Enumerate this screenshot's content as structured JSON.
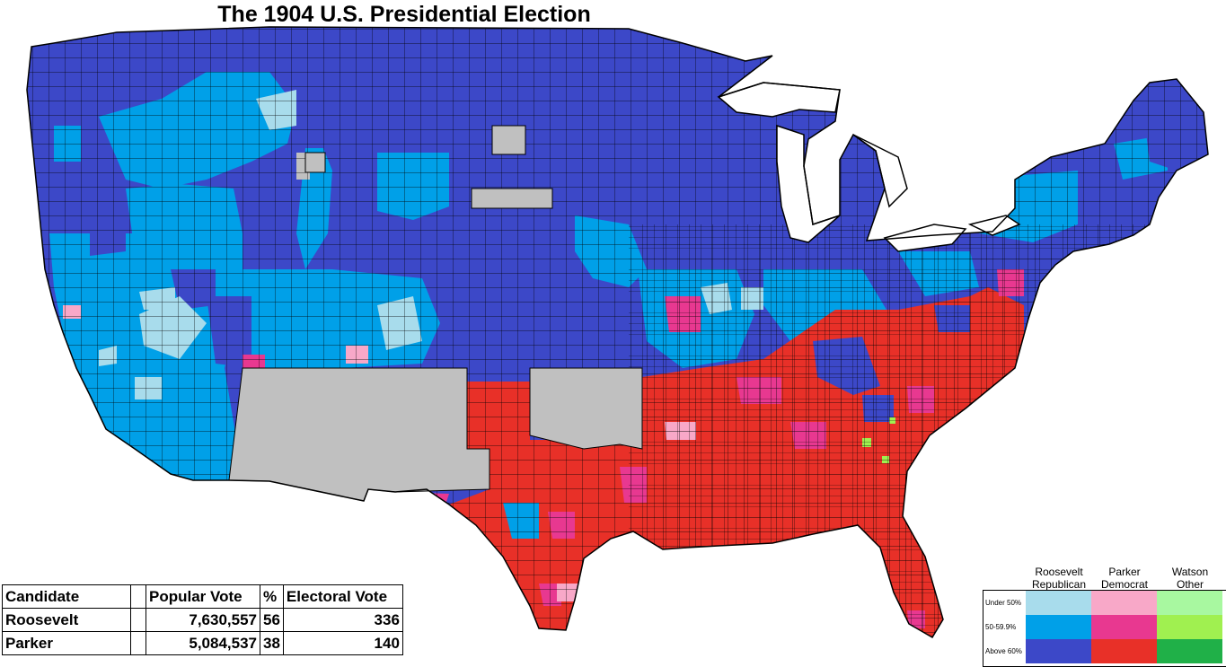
{
  "title": "The 1904 U.S. Presidential Election",
  "table": {
    "headers": [
      "Candidate",
      "",
      "Popular Vote",
      "%",
      "Electoral Vote"
    ],
    "rows": [
      {
        "candidate": "Roosevelt",
        "popular_vote": "7,630,557",
        "percent": "56",
        "electoral_vote": "336"
      },
      {
        "candidate": "Parker",
        "popular_vote": "5,084,537",
        "percent": "38",
        "electoral_vote": "140"
      }
    ]
  },
  "legend": {
    "columns": [
      {
        "line1": "Roosevelt",
        "line2": "Republican"
      },
      {
        "line1": "Parker",
        "line2": "Democrat"
      },
      {
        "line1": "Watson",
        "line2": "Other"
      }
    ],
    "rows": [
      "Under 50%",
      "50-59.9%",
      "Above 60%"
    ],
    "colors": [
      [
        "#a8dcec",
        "#f8a8c8",
        "#a8f8a0"
      ],
      [
        "#00a0e8",
        "#e83890",
        "#a0f050"
      ],
      [
        "#3c48c8",
        "#e83028",
        "#20b048"
      ]
    ]
  },
  "map_colors": {
    "rep_strong": "#3c48c8",
    "rep_mid": "#00a0e8",
    "rep_weak": "#a8dcec",
    "dem_strong": "#e83028",
    "dem_mid": "#e83890",
    "dem_weak": "#f8a8c8",
    "other_mid": "#a0f050",
    "no_data": "#c0c0c0",
    "border": "#000000"
  }
}
